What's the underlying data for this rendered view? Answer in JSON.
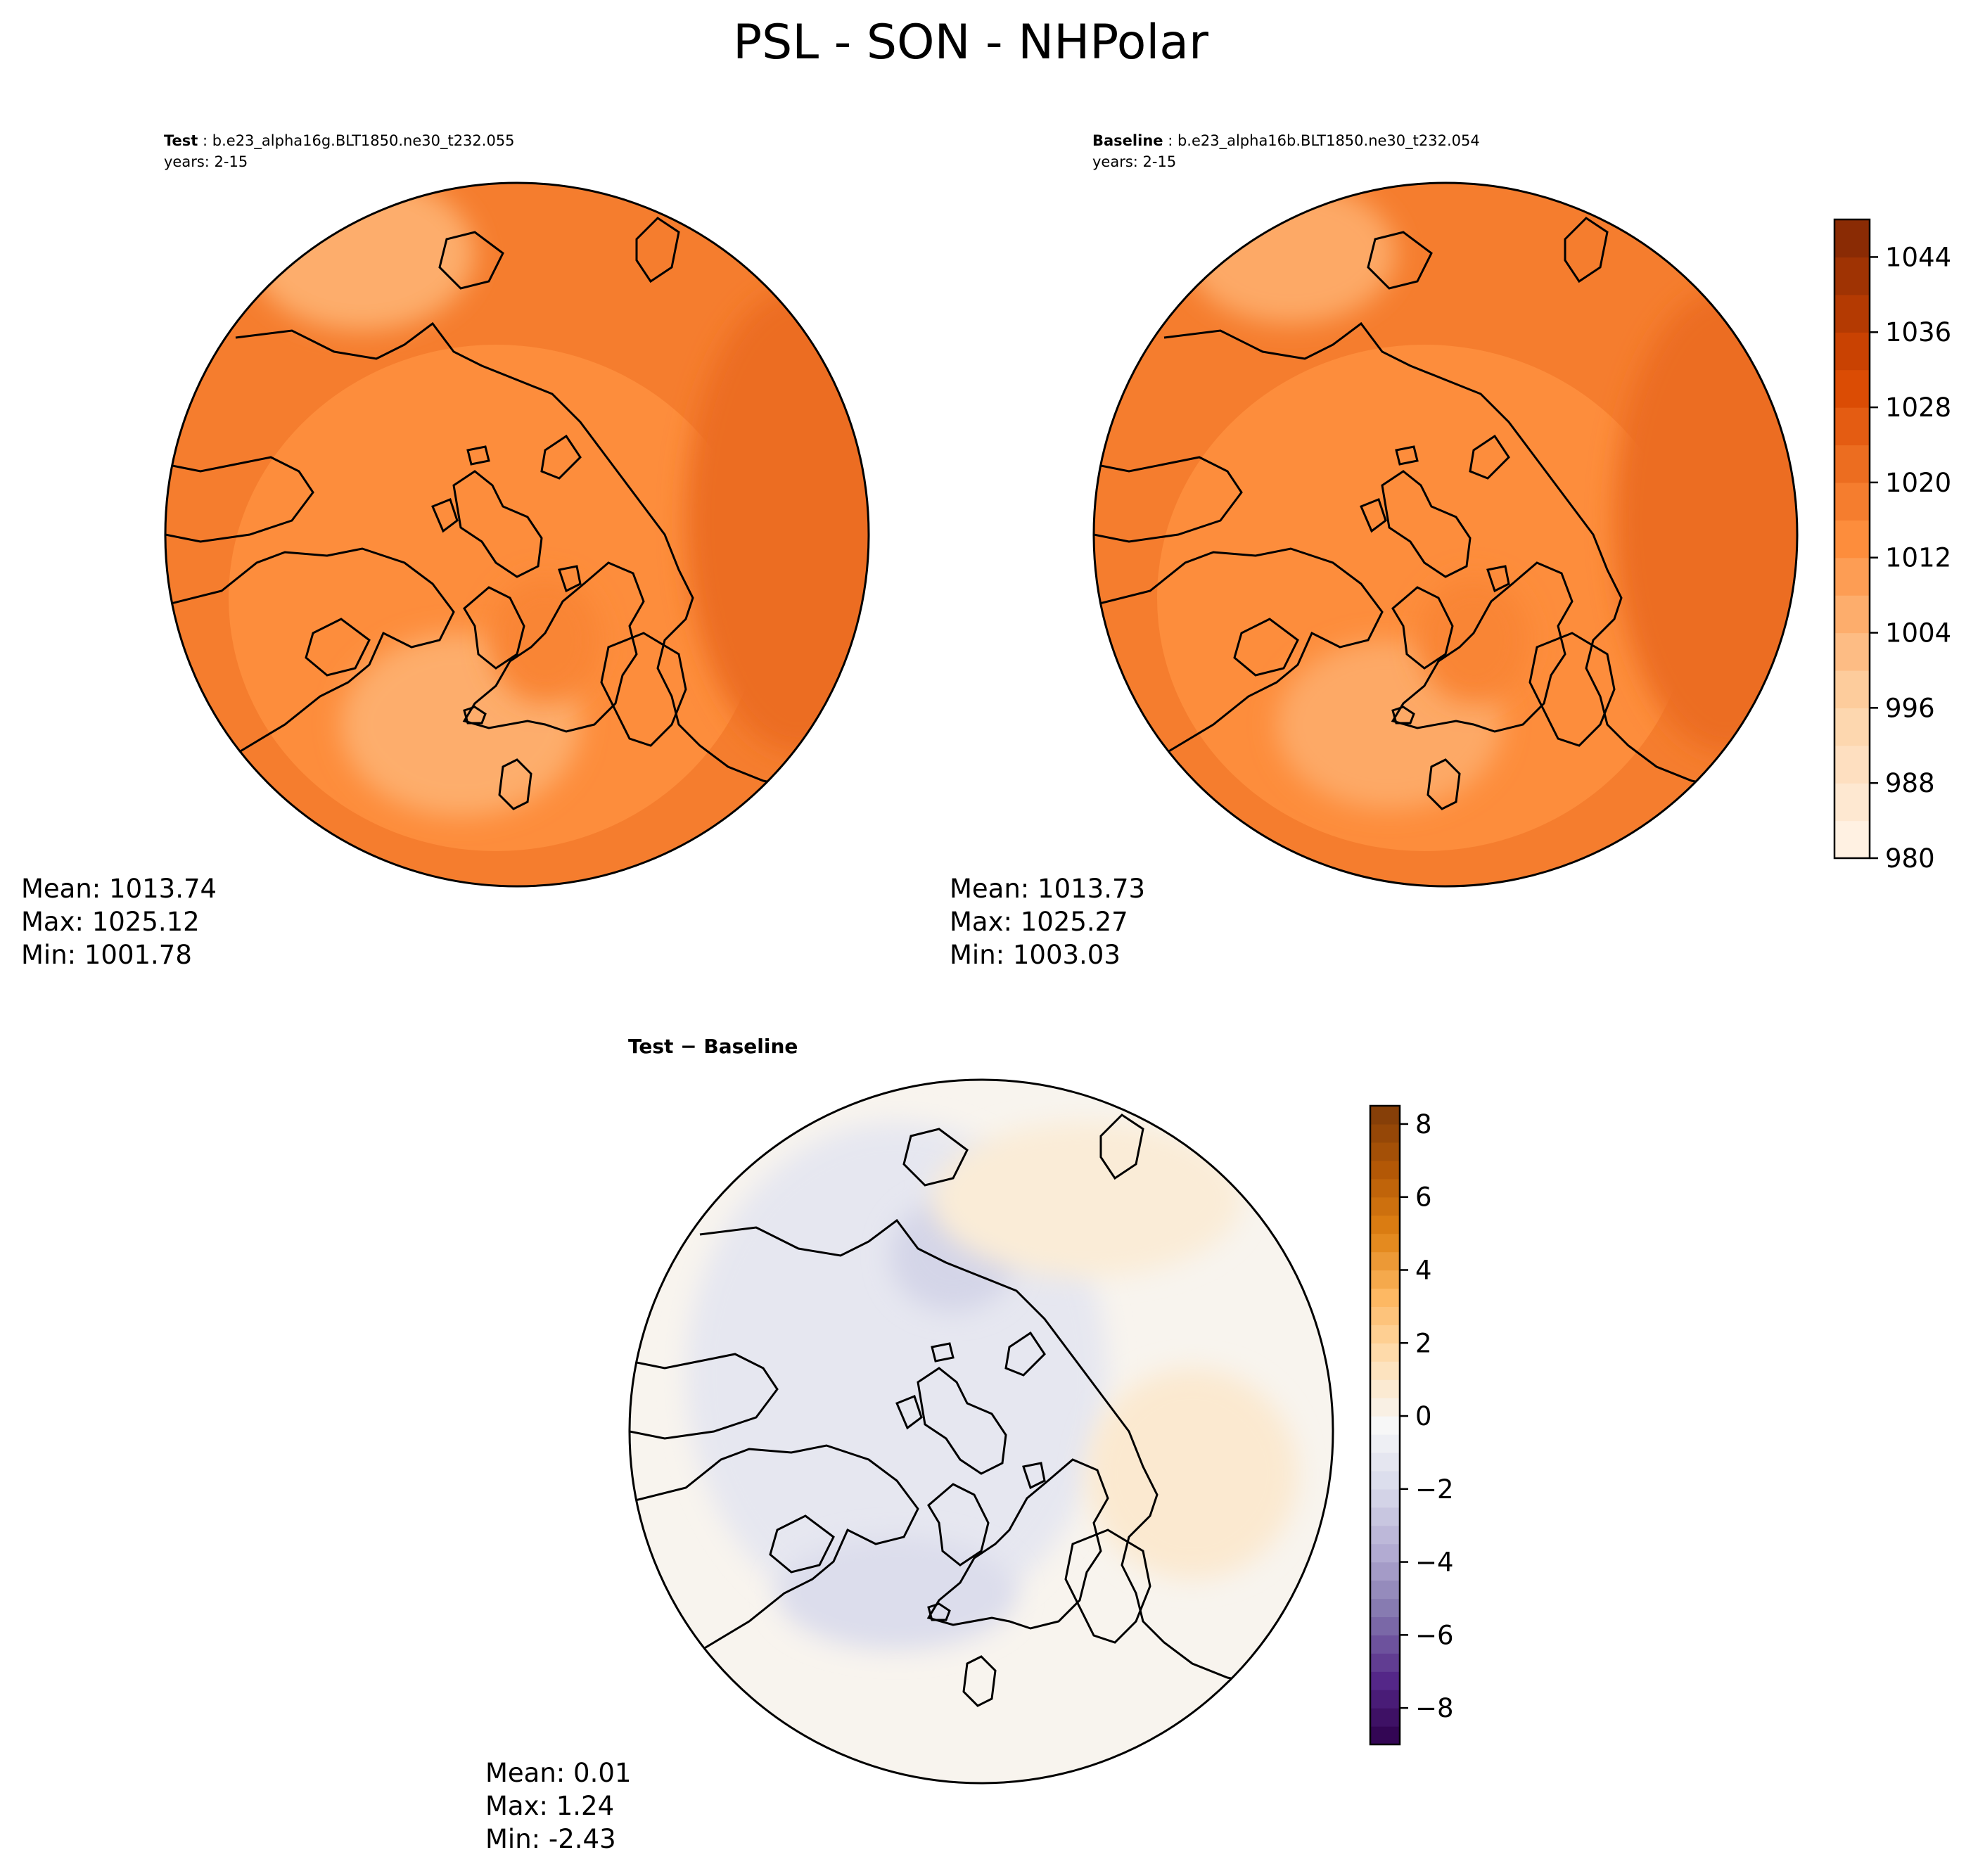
{
  "figure": {
    "title": "PSL - SON - NHPolar"
  },
  "chart_data": [
    {
      "type": "heatmap",
      "panel": "test",
      "label": "Test",
      "case": "b.e23_alpha16g.BLT1850.ne30_t232.055",
      "years": "years: 2-15",
      "projection": "north polar stereographic",
      "colormap": "Oranges",
      "levels": [
        980,
        984,
        988,
        992,
        996,
        1000,
        1004,
        1008,
        1012,
        1016,
        1020,
        1024,
        1028,
        1032,
        1036,
        1040,
        1044,
        1048
      ],
      "field": [
        {
          "region": "background",
          "value": 1018
        },
        {
          "region": "subpolar ring",
          "value": 1014
        },
        {
          "region": "Icelandic low",
          "value": 1006
        },
        {
          "region": "Aleutian low",
          "value": 1006
        },
        {
          "region": "Siberian high",
          "value": 1022
        },
        {
          "region": "Greenland high",
          "value": 1016
        }
      ],
      "stats": {
        "mean": "Mean: 1013.74",
        "max": "Max: 1025.12",
        "min": "Min: 1001.78"
      }
    },
    {
      "type": "heatmap",
      "panel": "baseline",
      "label": "Baseline",
      "case": "b.e23_alpha16b.BLT1850.ne30_t232.054",
      "years": "years: 2-15",
      "projection": "north polar stereographic",
      "colormap": "Oranges",
      "levels": [
        980,
        984,
        988,
        992,
        996,
        1000,
        1004,
        1008,
        1012,
        1016,
        1020,
        1024,
        1028,
        1032,
        1036,
        1040,
        1044,
        1048
      ],
      "field": [
        {
          "region": "background",
          "value": 1018
        },
        {
          "region": "subpolar ring",
          "value": 1014
        },
        {
          "region": "Icelandic low",
          "value": 1007
        },
        {
          "region": "Aleutian low",
          "value": 1007
        },
        {
          "region": "Siberian high",
          "value": 1022
        },
        {
          "region": "Greenland high",
          "value": 1016
        }
      ],
      "stats": {
        "mean": "Mean: 1013.73",
        "max": "Max: 1025.27",
        "min": "Min: 1003.03"
      },
      "colorbar": {
        "range": [
          980,
          1048
        ],
        "ticks": [
          980,
          988,
          996,
          1004,
          1012,
          1020,
          1028,
          1036,
          1044
        ],
        "tick_labels": [
          "980",
          "988",
          "996",
          "1004",
          "1012",
          "1020",
          "1028",
          "1036",
          "1044"
        ]
      }
    },
    {
      "type": "heatmap",
      "panel": "difference",
      "label": "Test",
      "separator": " − ",
      "label2": "Baseline",
      "projection": "north polar stereographic",
      "colormap": "PuOr_r",
      "levels": [
        -9,
        -8.5,
        -8,
        -7.5,
        -7,
        -6.5,
        -6,
        -5.5,
        -5,
        -4.5,
        -4,
        -3.5,
        -3,
        -2.5,
        -2,
        -1.5,
        -1,
        -0.5,
        0,
        0.5,
        1,
        1.5,
        2,
        2.5,
        3,
        3.5,
        4,
        4.5,
        5,
        5.5,
        6,
        6.5,
        7,
        7.5,
        8,
        8.5
      ],
      "field": [
        {
          "region": "background",
          "value": 0
        },
        {
          "region": "Arctic / Canada",
          "value": -1.2
        },
        {
          "region": "north of Baffin",
          "value": -2.2
        },
        {
          "region": "south of Greenland",
          "value": -1.8
        },
        {
          "region": "Scandinavia / Europe",
          "value": 0.8
        },
        {
          "region": "Siberia",
          "value": 0.6
        }
      ],
      "stats": {
        "mean": "Mean:  0.01",
        "max": "Max:  1.24",
        "min": "Min: -2.43"
      },
      "colorbar": {
        "range": [
          -9,
          8.5
        ],
        "ticks": [
          -8,
          -6,
          -4,
          -2,
          0,
          2,
          4,
          6,
          8
        ],
        "tick_labels": [
          "−8",
          "−6",
          "−4",
          "−2",
          "0",
          "2",
          "4",
          "6",
          "8"
        ]
      }
    }
  ]
}
